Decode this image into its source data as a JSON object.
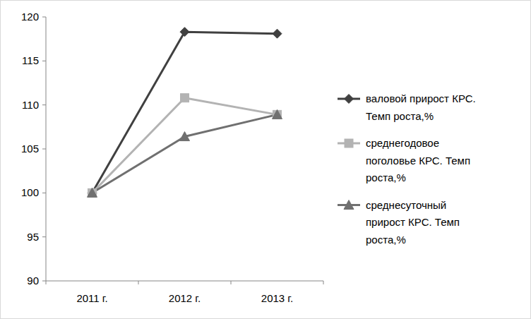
{
  "chart_data": {
    "type": "line",
    "categories": [
      "2011 г.",
      "2012 г.",
      "2013 г."
    ],
    "series": [
      {
        "name": "валовой прирост КРС. Темп роста,%",
        "color": "#404040",
        "marker": "diamond",
        "values": [
          100,
          118.3,
          118.1
        ]
      },
      {
        "name": "среднегодовое поголовье КРС. Темп роста,%",
        "color": "#b3b3b3",
        "marker": "square",
        "values": [
          100,
          110.8,
          108.9
        ]
      },
      {
        "name": "среднесуточный прирост КРС. Темп роста,%",
        "color": "#707070",
        "marker": "triangle",
        "values": [
          100,
          106.4,
          108.9
        ]
      }
    ],
    "ylim": [
      90,
      120
    ],
    "yticks": [
      90,
      95,
      100,
      105,
      110,
      115,
      120
    ],
    "grid": false,
    "legend": "right"
  }
}
